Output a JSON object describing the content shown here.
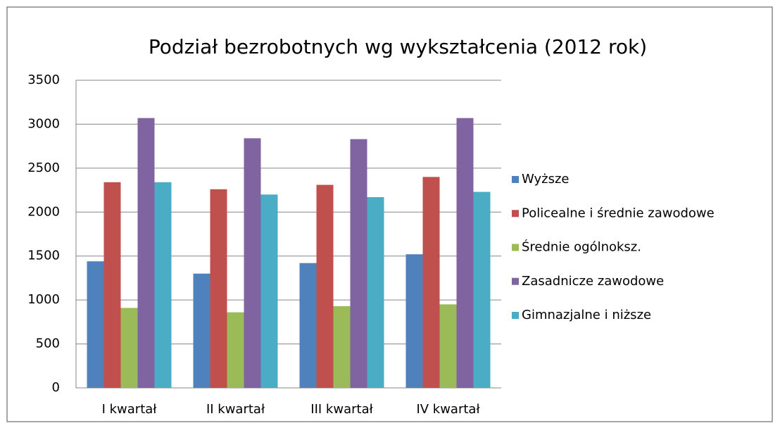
{
  "chart_data": {
    "type": "bar",
    "title": "Podział bezrobotnych wg wykształcenia (2012 rok)",
    "categories": [
      "I kwartał",
      "II kwartał",
      "III kwartał",
      "IV kwartał"
    ],
    "series": [
      {
        "name": "Wyższe",
        "color": "#4f81bd",
        "values": [
          1440,
          1300,
          1420,
          1520
        ]
      },
      {
        "name": "Policealne i średnie zawodowe",
        "color": "#c0504d",
        "values": [
          2340,
          2260,
          2310,
          2400
        ]
      },
      {
        "name": "Średnie ogólnoksz.",
        "color": "#9bbb59",
        "values": [
          910,
          860,
          930,
          950
        ]
      },
      {
        "name": "Zasadnicze zawodowe",
        "color": "#8064a2",
        "values": [
          3070,
          2840,
          2830,
          3070
        ]
      },
      {
        "name": "Gimnazjalne i niższe",
        "color": "#4bacc6",
        "values": [
          2340,
          2200,
          2170,
          2230
        ]
      }
    ],
    "ylim": [
      0,
      3500
    ],
    "yticks": [
      0,
      500,
      1000,
      1500,
      2000,
      2500,
      3000,
      3500
    ],
    "grid": true,
    "legend": "right"
  }
}
